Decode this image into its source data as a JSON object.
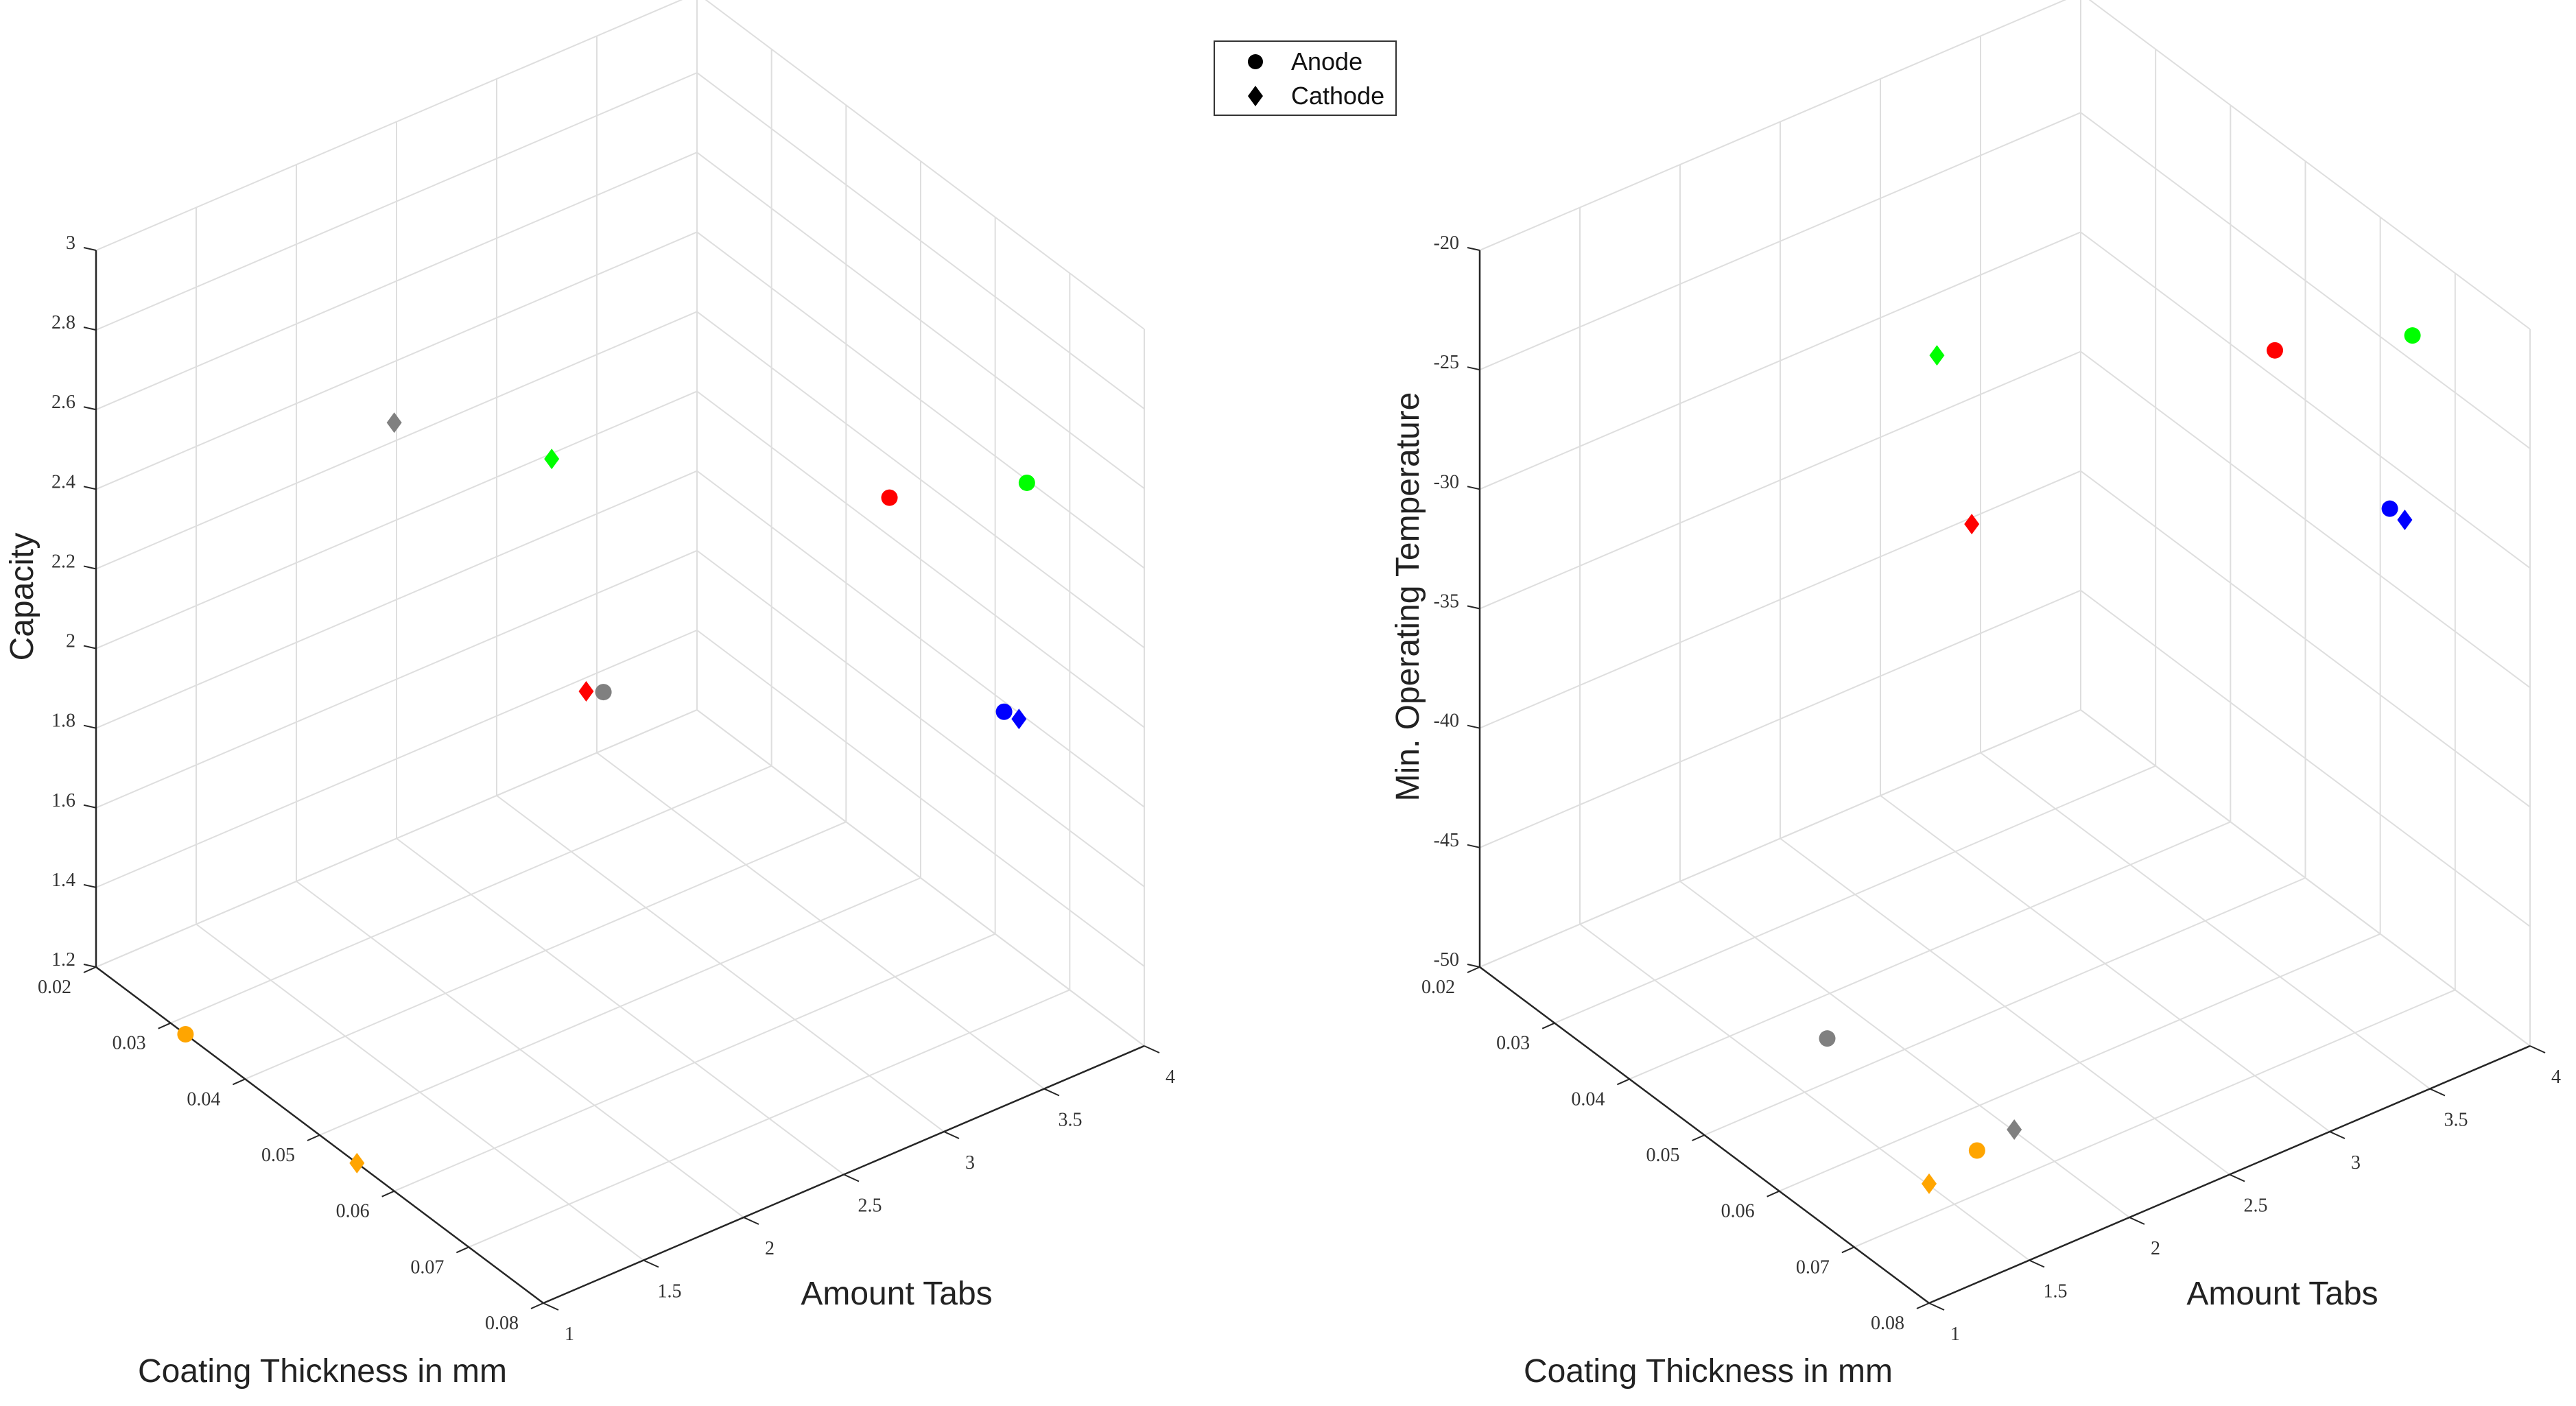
{
  "legend": {
    "entries": [
      {
        "label": "Anode",
        "marker": "circle"
      },
      {
        "label": "Cathode",
        "marker": "diamond"
      }
    ]
  },
  "chart_data": [
    {
      "type": "scatter3d",
      "title": "",
      "xlabel": "Amount Tabs",
      "ylabel": "Coating Thickness in mm",
      "zlabel": "Capacity",
      "xlim": [
        1,
        4
      ],
      "ylim": [
        0.02,
        0.08
      ],
      "zlim": [
        1.2,
        3
      ],
      "x_ticks": [
        "1",
        "1.5",
        "2",
        "2.5",
        "3",
        "3.5",
        "4"
      ],
      "y_ticks": [
        "0.02",
        "0.03",
        "0.04",
        "0.05",
        "0.06",
        "0.07",
        "0.08"
      ],
      "z_ticks": [
        "1.2",
        "1.4",
        "1.6",
        "1.8",
        "2",
        "2.2",
        "2.4",
        "2.6",
        "2.8",
        "3"
      ],
      "grid": true,
      "points": [
        {
          "series": "Anode",
          "color": "#808080",
          "x": 1.3,
          "y": 0.08,
          "z": 2.67
        },
        {
          "series": "Cathode",
          "color": "#808080",
          "x": 1.0,
          "y": 0.06,
          "z": 3.13
        },
        {
          "series": "Anode",
          "color": "#ff0000",
          "x": 3.1,
          "y": 0.07,
          "z": 2.63
        },
        {
          "series": "Cathode",
          "color": "#ff0000",
          "x": 1.4,
          "y": 0.075,
          "z": 2.58
        },
        {
          "series": "Anode",
          "color": "#00ff00",
          "x": 3.6,
          "y": 0.075,
          "z": 2.63
        },
        {
          "series": "Cathode",
          "color": "#00ff00",
          "x": 1.6,
          "y": 0.065,
          "z": 2.98
        },
        {
          "series": "Anode",
          "color": "#0000ff",
          "x": 3.3,
          "y": 0.08,
          "z": 2.19
        },
        {
          "series": "Cathode",
          "color": "#0000ff",
          "x": 3.3,
          "y": 0.082,
          "z": 2.2
        },
        {
          "series": "Anode",
          "color": "#ffa500",
          "x": 1.0,
          "y": 0.032,
          "z": 1.2
        },
        {
          "series": "Cathode",
          "color": "#ffa500",
          "x": 1.0,
          "y": 0.055,
          "z": 1.2
        }
      ]
    },
    {
      "type": "scatter3d",
      "title": "",
      "xlabel": "Amount Tabs",
      "ylabel": "Coating Thickness in mm",
      "zlabel": "Min. Operating Temperature",
      "xlim": [
        1,
        4
      ],
      "ylim": [
        0.02,
        0.08
      ],
      "zlim": [
        -50,
        -20
      ],
      "x_ticks": [
        "1",
        "1.5",
        "2",
        "2.5",
        "3",
        "3.5",
        "4"
      ],
      "y_ticks": [
        "0.02",
        "0.03",
        "0.04",
        "0.05",
        "0.06",
        "0.07",
        "0.08"
      ],
      "z_ticks": [
        "-50",
        "-45",
        "-40",
        "-35",
        "-30",
        "-25",
        "-20"
      ],
      "grid": true,
      "points": [
        {
          "series": "Anode",
          "color": "#808080",
          "x": 1.8,
          "y": 0.045,
          "z": -50
        },
        {
          "series": "Cathode",
          "color": "#808080",
          "x": 1.5,
          "y": 0.078,
          "z": -45
        },
        {
          "series": "Anode",
          "color": "#ff0000",
          "x": 3.1,
          "y": 0.07,
          "z": -20
        },
        {
          "series": "Cathode",
          "color": "#ff0000",
          "x": 1.4,
          "y": 0.075,
          "z": -20
        },
        {
          "series": "Anode",
          "color": "#00ff00",
          "x": 3.6,
          "y": 0.075,
          "z": -20
        },
        {
          "series": "Cathode",
          "color": "#00ff00",
          "x": 1.6,
          "y": 0.065,
          "z": -16
        },
        {
          "series": "Anode",
          "color": "#0000ff",
          "x": 3.3,
          "y": 0.08,
          "z": -25
        },
        {
          "series": "Cathode",
          "color": "#0000ff",
          "x": 3.3,
          "y": 0.082,
          "z": -25
        },
        {
          "series": "Anode",
          "color": "#ffa500",
          "x": 1.8,
          "y": 0.065,
          "z": -50
        },
        {
          "series": "Cathode",
          "color": "#ffa500",
          "x": 1.0,
          "y": 0.08,
          "z": -45
        }
      ]
    }
  ]
}
